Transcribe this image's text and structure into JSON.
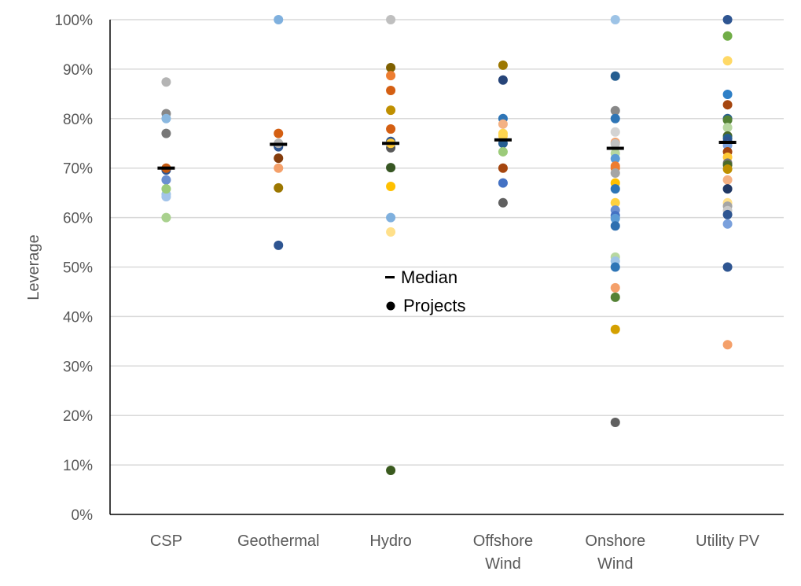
{
  "chart_data": {
    "type": "scatter",
    "title": "",
    "xlabel": "",
    "ylabel": "Leverage",
    "ylim": [
      0,
      100
    ],
    "y_ticks": [
      "0%",
      "10%",
      "20%",
      "30%",
      "40%",
      "50%",
      "60%",
      "70%",
      "80%",
      "90%",
      "100%"
    ],
    "grid": true,
    "legend": {
      "placement": "center",
      "entries": [
        {
          "label": "Median",
          "marker": "dash"
        },
        {
          "label": "Projects",
          "marker": "dot"
        }
      ]
    },
    "categories": [
      {
        "label": [
          "CSP"
        ],
        "median": 70,
        "points": [
          [
            87.4,
            "#b4b4b4"
          ],
          [
            81,
            "#888888"
          ],
          [
            80,
            "#8ab8e0"
          ],
          [
            77,
            "#777777"
          ],
          [
            69.6,
            "#2e5591"
          ],
          [
            70,
            "#c55a11"
          ],
          [
            67.6,
            "#6a8fd0"
          ],
          [
            64.7,
            "#9dc3e6"
          ],
          [
            64.2,
            "#a3c4ea"
          ],
          [
            65.8,
            "#9ccb7a"
          ],
          [
            60,
            "#a9d18e"
          ]
        ]
      },
      {
        "label": [
          "Geothermal"
        ],
        "median": 74.8,
        "points": [
          [
            100,
            "#7fb0de"
          ],
          [
            77,
            "#d45f12"
          ],
          [
            74.3,
            "#2e5591"
          ],
          [
            75,
            "#b4b4b4"
          ],
          [
            72,
            "#843c0c"
          ],
          [
            70,
            "#f4a06a"
          ],
          [
            66,
            "#9c7700"
          ],
          [
            54.4,
            "#2e5591"
          ]
        ]
      },
      {
        "label": [
          "Hydro"
        ],
        "median": 75,
        "points": [
          [
            100,
            "#bfbfbf"
          ],
          [
            90.3,
            "#7f6000"
          ],
          [
            88.7,
            "#ed7d31"
          ],
          [
            85.7,
            "#d45f12"
          ],
          [
            81.7,
            "#bf8f00"
          ],
          [
            77.9,
            "#d45f12"
          ],
          [
            75.4,
            "#2e5591"
          ],
          [
            74.1,
            "#595959"
          ],
          [
            75,
            "#ffc935"
          ],
          [
            70.1,
            "#375623"
          ],
          [
            66.3,
            "#ffc000"
          ],
          [
            60,
            "#7fb0de"
          ],
          [
            57.1,
            "#ffe08a"
          ],
          [
            8.9,
            "#3a5a1e"
          ]
        ]
      },
      {
        "label": [
          "Offshore",
          "Wind"
        ],
        "median": 75.7,
        "points": [
          [
            90.8,
            "#9c7700"
          ],
          [
            87.8,
            "#264478"
          ],
          [
            80,
            "#2e75b6"
          ],
          [
            78.9,
            "#f4b183"
          ],
          [
            77,
            "#ffd54f"
          ],
          [
            76.5,
            "#ffd54f"
          ],
          [
            75,
            "#255e91"
          ],
          [
            73.3,
            "#9ccb7a"
          ],
          [
            70,
            "#a5460f"
          ],
          [
            67,
            "#4472c4"
          ],
          [
            63,
            "#606060"
          ]
        ]
      },
      {
        "label": [
          "Onshore",
          "Wind"
        ],
        "median": 74,
        "points": [
          [
            100,
            "#9dc3e6"
          ],
          [
            88.6,
            "#255e91"
          ],
          [
            81.6,
            "#888888"
          ],
          [
            80,
            "#2e75b6"
          ],
          [
            77.3,
            "#d3d3d3"
          ],
          [
            75.2,
            "#f4a06a"
          ],
          [
            74.9,
            "#c0c0c0"
          ],
          [
            73,
            "#b7d7a0"
          ],
          [
            71.9,
            "#5b9bd5"
          ],
          [
            70.4,
            "#ed7d31"
          ],
          [
            70,
            "#ed7d31"
          ],
          [
            69,
            "#a5a5a5"
          ],
          [
            67,
            "#ffc000"
          ],
          [
            65.8,
            "#2e75b6"
          ],
          [
            63,
            "#ffd140"
          ],
          [
            61.5,
            "#6a8fd0"
          ],
          [
            60.4,
            "#4472c4"
          ],
          [
            59.8,
            "#5b9bd5"
          ],
          [
            58.3,
            "#2e6fb0"
          ],
          [
            52,
            "#b7d7a0"
          ],
          [
            51.2,
            "#9dc3e6"
          ],
          [
            50,
            "#2e75b6"
          ],
          [
            45.8,
            "#f4a06a"
          ],
          [
            43.9,
            "#548235"
          ],
          [
            37.4,
            "#d4a000"
          ],
          [
            18.6,
            "#606060"
          ]
        ]
      },
      {
        "label": [
          "Utility PV"
        ],
        "median": 75.2,
        "points": [
          [
            100,
            "#2e5591"
          ],
          [
            96.7,
            "#70ad47"
          ],
          [
            91.7,
            "#ffd966"
          ],
          [
            84.9,
            "#2e7fc6"
          ],
          [
            82.8,
            "#a5460f"
          ],
          [
            80,
            "#255e91"
          ],
          [
            79.7,
            "#548235"
          ],
          [
            78.2,
            "#b7d7a0"
          ],
          [
            76.5,
            "#4a6a2a"
          ],
          [
            76,
            "#255e91"
          ],
          [
            75.4,
            "#2e5591"
          ],
          [
            74.6,
            "#7aa0dc"
          ],
          [
            73.3,
            "#a5460f"
          ],
          [
            72.2,
            "#ffc935"
          ],
          [
            71,
            "#737373"
          ],
          [
            70.6,
            "#4a6a2a"
          ],
          [
            69.8,
            "#bf9000"
          ],
          [
            67.6,
            "#f4b183"
          ],
          [
            65.8,
            "#203864"
          ],
          [
            63,
            "#ffe08a"
          ],
          [
            62.3,
            "#a5a5a5"
          ],
          [
            61.4,
            "#c8c8c8"
          ],
          [
            60.6,
            "#2e5591"
          ],
          [
            58.7,
            "#7aa0dc"
          ],
          [
            50,
            "#2e5591"
          ],
          [
            34.3,
            "#f4a06a"
          ]
        ]
      }
    ]
  }
}
